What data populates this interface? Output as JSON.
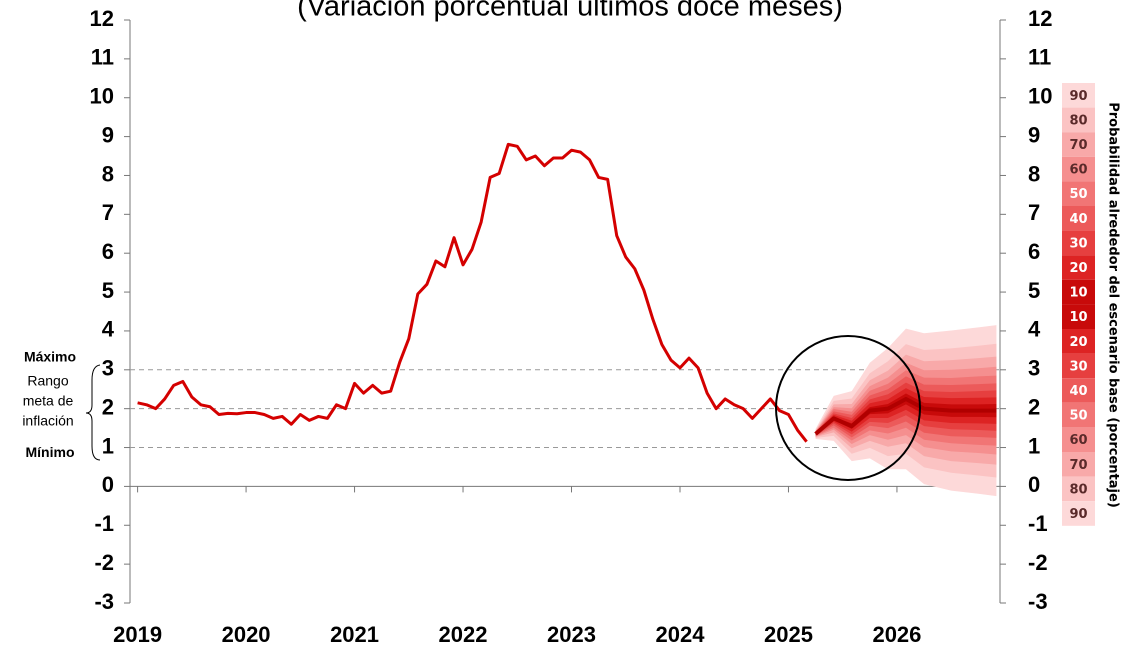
{
  "chart_data": {
    "type": "line",
    "subtitle": "(Variación porcentual últimos doce meses)",
    "xlim": [
      2018.93,
      2026.95
    ],
    "xticks": [
      2019,
      2020,
      2021,
      2022,
      2023,
      2024,
      2025,
      2026
    ],
    "ylim": [
      -3,
      12
    ],
    "yticks": [
      -3,
      -2,
      -1,
      0,
      1,
      2,
      3,
      4,
      5,
      6,
      7,
      8,
      9,
      10,
      11,
      12
    ],
    "y2lim": [
      -3,
      12
    ],
    "y2ticks": [
      -3,
      -2,
      -1,
      0,
      1,
      2,
      3,
      4,
      5,
      6,
      7,
      8,
      9,
      10,
      11,
      12
    ],
    "series": [
      {
        "color": "#d40000",
        "x": [
          2019,
          2019.083,
          2019.167,
          2019.25,
          2019.333,
          2019.417,
          2019.5,
          2019.583,
          2019.667,
          2019.75,
          2019.833,
          2019.917,
          2020,
          2020.083,
          2020.167,
          2020.25,
          2020.333,
          2020.417,
          2020.5,
          2020.583,
          2020.667,
          2020.75,
          2020.833,
          2020.917,
          2021,
          2021.083,
          2021.167,
          2021.25,
          2021.333,
          2021.417,
          2021.5,
          2021.583,
          2021.667,
          2021.75,
          2021.833,
          2021.917,
          2022,
          2022.083,
          2022.167,
          2022.25,
          2022.333,
          2022.417,
          2022.5,
          2022.583,
          2022.667,
          2022.75,
          2022.833,
          2022.917,
          2023,
          2023.083,
          2023.167,
          2023.25,
          2023.333,
          2023.417,
          2023.5,
          2023.583,
          2023.667,
          2023.75,
          2023.833,
          2023.917,
          2024,
          2024.083,
          2024.167,
          2024.25,
          2024.333,
          2024.417,
          2024.5,
          2024.583,
          2024.667,
          2024.75,
          2024.833,
          2024.917,
          2025,
          2025.083,
          2025.167
        ],
        "values": [
          2.15,
          2.1,
          2.0,
          2.25,
          2.6,
          2.7,
          2.3,
          2.1,
          2.05,
          1.85,
          1.88,
          1.87,
          1.9,
          1.9,
          1.85,
          1.75,
          1.8,
          1.6,
          1.85,
          1.7,
          1.8,
          1.75,
          2.1,
          2.0,
          2.65,
          2.4,
          2.6,
          2.4,
          2.45,
          3.2,
          3.8,
          4.95,
          5.2,
          5.8,
          5.65,
          6.4,
          5.7,
          6.1,
          6.8,
          7.95,
          8.05,
          8.8,
          8.75,
          8.4,
          8.5,
          8.25,
          8.45,
          8.45,
          8.65,
          8.6,
          8.4,
          7.95,
          7.9,
          6.45,
          5.9,
          5.6,
          5.05,
          4.3,
          3.65,
          3.25,
          3.05,
          3.3,
          3.05,
          2.4,
          2.0,
          2.25,
          2.1,
          2.0,
          1.75,
          2.0,
          2.25,
          1.95,
          1.85,
          1.45,
          1.15
        ]
      }
    ],
    "fan": {
      "color": "#b00000",
      "x": [
        2025.25,
        2025.417,
        2025.583,
        2025.75,
        2025.917,
        2026.083,
        2026.25,
        2026.5,
        2026.75,
        2026.917
      ],
      "central": [
        1.35,
        1.75,
        1.55,
        1.95,
        2.0,
        2.25,
        2.0,
        1.95,
        1.95,
        1.95
      ],
      "bands": [
        {
          "probability": 90,
          "color": "#fdd9d9",
          "lower": [
            1.22,
            1.17,
            0.65,
            0.72,
            0.44,
            0.44,
            0.06,
            -0.11,
            -0.19,
            -0.25
          ],
          "upper": [
            1.48,
            2.33,
            2.45,
            3.18,
            3.56,
            4.06,
            3.94,
            4.01,
            4.09,
            4.15
          ]
        },
        {
          "probability": 80,
          "color": "#fbc3c3",
          "lower": [
            1.25,
            1.3,
            0.84,
            0.99,
            0.78,
            0.84,
            0.49,
            0.35,
            0.28,
            0.23
          ],
          "upper": [
            1.45,
            2.2,
            2.26,
            2.91,
            3.22,
            3.66,
            3.51,
            3.55,
            3.62,
            3.67
          ]
        },
        {
          "probability": 70,
          "color": "#f8a9a9",
          "lower": [
            1.27,
            1.39,
            0.98,
            1.17,
            1.02,
            1.11,
            0.78,
            0.65,
            0.6,
            0.56
          ],
          "upper": [
            1.43,
            2.11,
            2.12,
            2.73,
            2.98,
            3.39,
            3.22,
            3.25,
            3.3,
            3.34
          ]
        },
        {
          "probability": 60,
          "color": "#f58f8f",
          "lower": [
            1.28,
            1.46,
            1.09,
            1.32,
            1.2,
            1.32,
            1.01,
            0.9,
            0.86,
            0.82
          ],
          "upper": [
            1.42,
            2.04,
            2.01,
            2.58,
            2.8,
            3.18,
            2.99,
            3.0,
            3.04,
            3.08
          ]
        },
        {
          "probability": 50,
          "color": "#f17575",
          "lower": [
            1.3,
            1.51,
            1.18,
            1.44,
            1.36,
            1.51,
            1.2,
            1.11,
            1.07,
            1.05
          ],
          "upper": [
            1.4,
            1.99,
            1.92,
            2.46,
            2.64,
            2.99,
            2.8,
            2.79,
            2.83,
            2.85
          ]
        },
        {
          "probability": 40,
          "color": "#ec5a5a",
          "lower": [
            1.31,
            1.57,
            1.26,
            1.56,
            1.5,
            1.67,
            1.38,
            1.29,
            1.27,
            1.25
          ],
          "upper": [
            1.39,
            1.93,
            1.84,
            2.34,
            2.5,
            2.83,
            2.62,
            2.61,
            2.63,
            2.65
          ]
        },
        {
          "probability": 30,
          "color": "#e63f3f",
          "lower": [
            1.32,
            1.62,
            1.34,
            1.66,
            1.63,
            1.83,
            1.55,
            1.47,
            1.45,
            1.43
          ],
          "upper": [
            1.38,
            1.88,
            1.76,
            2.24,
            2.37,
            2.67,
            2.45,
            2.43,
            2.45,
            2.47
          ]
        },
        {
          "probability": 20,
          "color": "#dd2323",
          "lower": [
            1.33,
            1.66,
            1.41,
            1.76,
            1.76,
            1.97,
            1.7,
            1.63,
            1.62,
            1.61
          ],
          "upper": [
            1.37,
            1.84,
            1.69,
            2.14,
            2.24,
            2.53,
            2.3,
            2.27,
            2.28,
            2.29
          ]
        },
        {
          "probability": 10,
          "color": "#c80a0a",
          "lower": [
            1.34,
            1.71,
            1.48,
            1.86,
            1.88,
            2.11,
            1.85,
            1.79,
            1.79,
            1.78
          ],
          "upper": [
            1.36,
            1.79,
            1.62,
            2.04,
            2.12,
            2.39,
            2.15,
            2.11,
            2.11,
            2.12
          ]
        }
      ]
    },
    "legend_title": "Probabilidad alrededor del escenario base (porcentaje)",
    "target_range": {
      "upper": 3,
      "center": 2,
      "lower": 1,
      "max_label": "Máximo",
      "min_label": "Mínimo",
      "label": [
        "Rango",
        "meta de",
        "inflación"
      ]
    }
  }
}
